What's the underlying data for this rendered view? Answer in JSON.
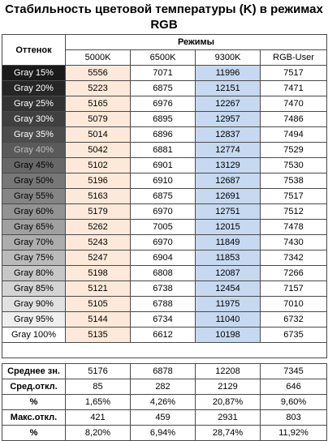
{
  "title_line1": "Стабильность цветовой температуры (K) в режимах",
  "title_line2": "RGB",
  "header": {
    "shade": "Оттенок",
    "modes": "Режимы",
    "cols": [
      "5000K",
      "6500K",
      "9300K",
      "RGB-User"
    ]
  },
  "chart_data": {
    "type": "table",
    "title": "Стабильность цветовой температуры (K) в режимах RGB",
    "columns": [
      "5000K",
      "6500K",
      "9300K",
      "RGB-User"
    ],
    "rows": [
      {
        "label": "Gray 15%",
        "swatch": "#1a1a1a",
        "text": "#ffffff",
        "values": [
          "5556",
          "7071",
          "11996",
          "7517"
        ]
      },
      {
        "label": "Gray 20%",
        "swatch": "#262626",
        "text": "#ffffff",
        "values": [
          "5223",
          "6875",
          "12151",
          "7471"
        ]
      },
      {
        "label": "Gray 25%",
        "swatch": "#333333",
        "text": "#ffffff",
        "values": [
          "5165",
          "6976",
          "12267",
          "7470"
        ]
      },
      {
        "label": "Gray 30%",
        "swatch": "#404040",
        "text": "#ffffff",
        "values": [
          "5079",
          "6895",
          "12957",
          "7486"
        ]
      },
      {
        "label": "Gray 35%",
        "swatch": "#4d4d4d",
        "text": "#ffffff",
        "values": [
          "5014",
          "6896",
          "12837",
          "7494"
        ]
      },
      {
        "label": "Gray 40%",
        "swatch": "#5a5a5a",
        "text": "#bfbfbf",
        "values": [
          "5042",
          "6881",
          "12774",
          "7529"
        ]
      },
      {
        "label": "Gray 45%",
        "swatch": "#686868",
        "text": "#000000",
        "values": [
          "5102",
          "6901",
          "13129",
          "7530"
        ]
      },
      {
        "label": "Gray 50%",
        "swatch": "#777777",
        "text": "#000000",
        "values": [
          "5196",
          "6910",
          "12687",
          "7538"
        ]
      },
      {
        "label": "Gray 55%",
        "swatch": "#858585",
        "text": "#000000",
        "values": [
          "5163",
          "6875",
          "12691",
          "7517"
        ]
      },
      {
        "label": "Gray 60%",
        "swatch": "#939393",
        "text": "#000000",
        "values": [
          "5179",
          "6970",
          "12751",
          "7512"
        ]
      },
      {
        "label": "Gray 65%",
        "swatch": "#a0a0a0",
        "text": "#000000",
        "values": [
          "5262",
          "7005",
          "12015",
          "7478"
        ]
      },
      {
        "label": "Gray 70%",
        "swatch": "#adadad",
        "text": "#000000",
        "values": [
          "5243",
          "6970",
          "11849",
          "7430"
        ]
      },
      {
        "label": "Gray 75%",
        "swatch": "#bababa",
        "text": "#000000",
        "values": [
          "5247",
          "6904",
          "11853",
          "7342"
        ]
      },
      {
        "label": "Gray 80%",
        "swatch": "#c7c7c7",
        "text": "#000000",
        "values": [
          "5198",
          "6808",
          "12087",
          "7266"
        ]
      },
      {
        "label": "Gray 85%",
        "swatch": "#d4d4d4",
        "text": "#000000",
        "values": [
          "5121",
          "6738",
          "12454",
          "7157"
        ]
      },
      {
        "label": "Gray 90%",
        "swatch": "#e1e1e1",
        "text": "#000000",
        "values": [
          "5105",
          "6788",
          "11975",
          "7010"
        ]
      },
      {
        "label": "Gray 95%",
        "swatch": "#efefef",
        "text": "#000000",
        "values": [
          "5144",
          "6734",
          "11040",
          "6732"
        ]
      },
      {
        "label": "Gray 100%",
        "swatch": "#ffffff",
        "text": "#000000",
        "values": [
          "5135",
          "6612",
          "10198",
          "6735"
        ]
      }
    ],
    "stats": [
      {
        "label": "Среднее зн.",
        "values": [
          "5176",
          "6878",
          "12208",
          "7345"
        ]
      },
      {
        "label": "Сред.откл.",
        "values": [
          "85",
          "282",
          "2129",
          "646"
        ]
      },
      {
        "label": "%",
        "values": [
          "1,65%",
          "4,26%",
          "20,87%",
          "9,60%"
        ]
      },
      {
        "label": "Макс.откл.",
        "values": [
          "421",
          "459",
          "2931",
          "803"
        ]
      },
      {
        "label": "%",
        "values": [
          "8,20%",
          "6,94%",
          "28,74%",
          "11,92%"
        ]
      }
    ]
  }
}
